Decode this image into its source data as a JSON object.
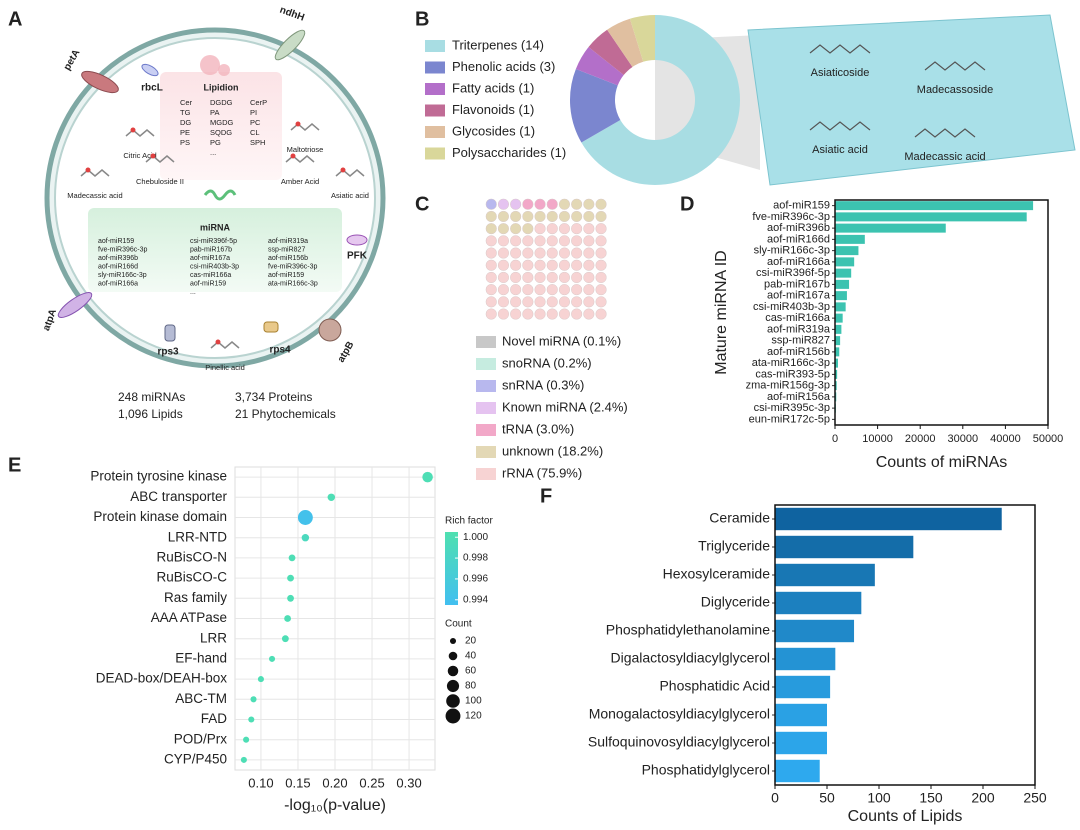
{
  "panel_a": {
    "label": "A",
    "genes": [
      "petA",
      "ndhH",
      "rbcL",
      "PFK",
      "atpA",
      "atpB",
      "rps3",
      "rps4"
    ],
    "lipidion": {
      "title": "Lipidion",
      "columns": [
        [
          "Cer",
          "TG",
          "DG",
          "PE",
          "PS"
        ],
        [
          "DGDG",
          "PA",
          "MGDG",
          "SQDG",
          "PG",
          "..."
        ],
        [
          "CerP",
          "PI",
          "PC",
          "CL",
          "SPH"
        ]
      ]
    },
    "compounds": [
      "Citric Acid",
      "Maltotriose",
      "Madecassic acid",
      "Chebuloside II",
      "Amber Acid",
      "Asiatic acid",
      "Pinellic acid"
    ],
    "mirna": {
      "title": "miRNA",
      "columns": [
        [
          "aof-miR159",
          "fve-miR396c-3p",
          "aof-miR396b",
          "aof-miR166d",
          "sly-miR166c-3p",
          "aof-miR166a"
        ],
        [
          "csi-miR396f-5p",
          "pab-miR167b",
          "aof-miR167a",
          "csi-miR403b-3p",
          "cas-miR166a",
          "aof-miR159",
          "..."
        ],
        [
          "aof-miR319a",
          "ssp-miR827",
          "aof-miR156b",
          "fve-miR396c-3p",
          "aof-miR159",
          "ata-miR166c-3p"
        ]
      ]
    },
    "stats": [
      "248 miRNAs",
      "1,096 Lipids",
      "3,734 Proteins",
      "21 Phytochemicals"
    ]
  },
  "chart_data": [
    {
      "type": "donut",
      "label": "B",
      "categories": [
        "Triterpenes (14)",
        "Phenolic acids (3)",
        "Fatty acids (1)",
        "Flavonoids (1)",
        "Glycosides (1)",
        "Polysaccharides (1)"
      ],
      "values": [
        14,
        3,
        1,
        1,
        1,
        1
      ],
      "colors": [
        "#a8dde3",
        "#7b86cf",
        "#b36fc9",
        "#c06b95",
        "#e0bfa0",
        "#d9d79a"
      ],
      "annotations": [
        "Asiaticoside",
        "Madecassoside",
        "Asiatic acid",
        "Madecassic acid"
      ]
    },
    {
      "type": "waffle",
      "label": "C",
      "categories": [
        "Novel miRNA (0.1%)",
        "snoRNA (0.2%)",
        "snRNA (0.3%)",
        "Known miRNA (2.4%)",
        "tRNA (3.0%)",
        "unknown (18.2%)",
        "rRNA (75.9%)"
      ],
      "values": [
        0.1,
        0.2,
        0.3,
        2.4,
        3.0,
        18.2,
        75.9
      ],
      "colors": [
        "#c8c8c8",
        "#c6ece0",
        "#b8b8ee",
        "#e5c3f0",
        "#f2a8c8",
        "#e3d8b5",
        "#f7d3d3"
      ]
    },
    {
      "type": "hbar",
      "label": "D",
      "ylabel": "Mature miRNA ID",
      "xlabel": "Counts of miRNAs",
      "categories": [
        "aof-miR159",
        "fve-miR396c-3p",
        "aof-miR396b",
        "aof-miR166d",
        "sly-miR166c-3p",
        "aof-miR166a",
        "csi-miR396f-5p",
        "pab-miR167b",
        "aof-miR167a",
        "csi-miR403b-3p",
        "cas-miR166a",
        "aof-miR319a",
        "ssp-miR827",
        "aof-miR156b",
        "ata-miR166c-3p",
        "cas-miR393-5p",
        "zma-miR156g-3p",
        "aof-miR156a",
        "csi-miR395c-3p",
        "eun-miR172c-5p"
      ],
      "values": [
        46500,
        45000,
        26000,
        7000,
        5500,
        4500,
        3800,
        3300,
        2800,
        2500,
        1800,
        1500,
        1200,
        1000,
        700,
        500,
        400,
        300,
        200,
        100
      ],
      "color": "#3cc3b0",
      "xlim": [
        0,
        50000
      ],
      "xticks": [
        0,
        10000,
        20000,
        30000,
        40000,
        50000
      ]
    },
    {
      "type": "bubble",
      "label": "E",
      "xlabel": "-log₁₀(p-value)",
      "categories": [
        "Protein tyrosine kinase",
        "ABC transporter",
        "Protein kinase domain",
        "LRR-NTD",
        "RuBisCO-N",
        "RuBisCO-C",
        "Ras family",
        "AAA ATPase",
        "LRR",
        "EF-hand",
        "DEAD-box/DEAH-box",
        "ABC-TM",
        "FAD",
        "POD/Prx",
        "CYP/P450"
      ],
      "values": [
        0.325,
        0.195,
        0.16,
        0.16,
        0.142,
        0.14,
        0.14,
        0.136,
        0.133,
        0.115,
        0.1,
        0.09,
        0.087,
        0.08,
        0.077
      ],
      "sizes": [
        60,
        30,
        120,
        30,
        25,
        25,
        25,
        25,
        25,
        20,
        20,
        20,
        20,
        20,
        20
      ],
      "rich_factor": [
        1.0,
        1.0,
        0.994,
        0.999,
        1.0,
        1.0,
        1.0,
        1.0,
        1.0,
        1.0,
        1.0,
        1.0,
        1.0,
        1.0,
        1.0
      ],
      "xlim": [
        0.065,
        0.335
      ],
      "xticks": [
        {
          "value": 0.1,
          "label": "0.10"
        },
        {
          "value": 0.15,
          "label": "0.15"
        },
        {
          "value": 0.2,
          "label": "0.20"
        },
        {
          "value": 0.25,
          "label": "0.25"
        },
        {
          "value": 0.3,
          "label": "0.30"
        }
      ],
      "grid": true,
      "color_legend": {
        "title": "Rich factor",
        "clim": [
          0.9935,
          1.0005
        ],
        "colors": [
          "#42bff0",
          "#4fe0b0"
        ],
        "ticks": [
          {
            "value": 1.0,
            "label": "1.000"
          },
          {
            "value": 0.998,
            "label": "0.998"
          },
          {
            "value": 0.996,
            "label": "0.996"
          },
          {
            "value": 0.994,
            "label": "0.994"
          }
        ]
      },
      "size_legend": {
        "title": "Count",
        "values": [
          20,
          40,
          60,
          80,
          100,
          120
        ]
      }
    },
    {
      "type": "hbar",
      "label": "F",
      "xlabel": "Counts of Lipids",
      "categories": [
        "Ceramide",
        "Triglyceride",
        "Hexosylceramide",
        "Diglyceride",
        "Phosphatidylethanolamine",
        "Digalactosyldiacylglycerol",
        "Phosphatidic Acid",
        "Monogalactosyldiacylglycerol",
        "Sulfoquinovosyldiacylglycerol",
        "Phosphatidylglycerol"
      ],
      "values": [
        218,
        133,
        96,
        83,
        76,
        58,
        53,
        50,
        50,
        43
      ],
      "colors": [
        "#0f63a0",
        "#146da9",
        "#1877b4",
        "#1c80bf",
        "#2089c9",
        "#2493d4",
        "#279bdd",
        "#2aa1e4",
        "#2ca5e9",
        "#2ea9ee"
      ],
      "xlim": [
        0,
        250
      ],
      "xticks": [
        0,
        50,
        100,
        150,
        200,
        250
      ]
    }
  ]
}
